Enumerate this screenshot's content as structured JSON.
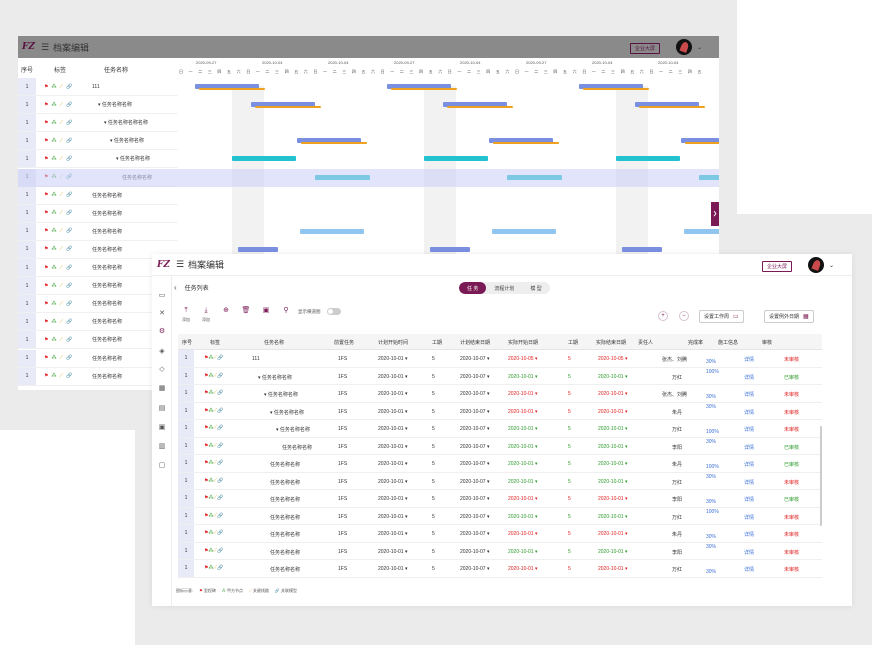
{
  "app": {
    "logo": "FZ",
    "title": "档案编辑",
    "enterprise_btn": "企业大屏"
  },
  "columns_bg": {
    "seq": "序号",
    "tags": "标签",
    "name": "任务名称"
  },
  "gantt": {
    "dates": [
      "2020-09-27",
      "2020-10-04",
      "2020-10-04",
      "2020-09-27",
      "2020-10-04",
      "2020-09-27",
      "2020-10-04",
      "2020-10-04"
    ],
    "weekdays": [
      "日",
      "一",
      "二",
      "三",
      "四",
      "五",
      "六"
    ]
  },
  "bg_rows": [
    {
      "seq": "1",
      "name": "111",
      "indent": 0
    },
    {
      "seq": "1",
      "name": "任务名称名称",
      "indent": 1
    },
    {
      "seq": "1",
      "name": "任务名称名称名称",
      "indent": 2
    },
    {
      "seq": "1",
      "name": "任务名称名称",
      "indent": 3
    },
    {
      "seq": "1",
      "name": "任务名称名称",
      "indent": 4
    },
    {
      "seq": "1",
      "name": "任务名称名称",
      "indent": 5
    },
    {
      "seq": "1",
      "name": "任务名称名称",
      "indent": 0
    },
    {
      "seq": "1",
      "name": "任务名称名称",
      "indent": 0
    },
    {
      "seq": "1",
      "name": "任务名称名称",
      "indent": 0
    },
    {
      "seq": "1",
      "name": "任务名称名称",
      "indent": 0
    },
    {
      "seq": "1",
      "name": "任务名称名称",
      "indent": 0
    },
    {
      "seq": "1",
      "name": "任务名称名称",
      "indent": 0
    },
    {
      "seq": "1",
      "name": "任务名称名称",
      "indent": 0
    },
    {
      "seq": "1",
      "name": "任务名称名称",
      "indent": 0
    },
    {
      "seq": "1",
      "name": "任务名称名称",
      "indent": 0
    },
    {
      "seq": "1",
      "name": "任务名称名称",
      "indent": 0
    },
    {
      "seq": "1",
      "name": "任务名称名称",
      "indent": 0
    }
  ],
  "front": {
    "breadcrumb": "任务列表",
    "tabs": [
      "任 务",
      "流程计划",
      "模 型"
    ],
    "toolbar": [
      "添加",
      "添加",
      "",
      "",
      "",
      "",
      ""
    ],
    "toggle_label": "显示横道图",
    "btn_workday": "设置工作周",
    "btn_exception": "设置例外日期",
    "headers": [
      "序号",
      "标签",
      "任务名称",
      "前置任务",
      "计划开始时间",
      "工期",
      "计划结束日期",
      "实际开始日期",
      "工期",
      "实际结束日期",
      "责任人",
      "完成率",
      "施工信息",
      "审核"
    ],
    "rows": [
      {
        "seq": "1",
        "name": "111",
        "indent": 0,
        "arrow": "",
        "pre": "1FS",
        "ps": "2020-10-01",
        "d1": "5",
        "pe": "2020-10-07",
        "as": "2020-10-05",
        "asc": "red",
        "d2": "5",
        "ae": "2020-10-05",
        "aec": "red",
        "owner": "张杰、刘腾",
        "rate": "30%",
        "info": "详情",
        "audit": "未审核",
        "auc": "red"
      },
      {
        "seq": "1",
        "name": "任务名称名称",
        "indent": 1,
        "arrow": "▾",
        "pre": "1FS",
        "ps": "2020-10-01",
        "d1": "5",
        "pe": "2020-10-07",
        "as": "2020-10-01",
        "asc": "grn",
        "d2": "5",
        "ae": "2020-10-01",
        "aec": "grn",
        "owner": "万红",
        "rate": "100%",
        "info": "详情",
        "audit": "已审核",
        "auc": "grn"
      },
      {
        "seq": "1",
        "name": "任务名称名称",
        "indent": 2,
        "arrow": "▾",
        "pre": "1FS",
        "ps": "2020-10-01",
        "d1": "5",
        "pe": "2020-10-07",
        "as": "2020-10-01",
        "asc": "red",
        "d2": "5",
        "ae": "2020-10-01",
        "aec": "red",
        "owner": "张杰、刘腾",
        "rate": "30%",
        "info": "详情",
        "audit": "未审核",
        "auc": "red"
      },
      {
        "seq": "1",
        "name": "任务名称名称",
        "indent": 3,
        "arrow": "▾",
        "pre": "1FS",
        "ps": "2020-10-01",
        "d1": "5",
        "pe": "2020-10-07",
        "as": "2020-10-01",
        "asc": "red",
        "d2": "5",
        "ae": "2020-10-01",
        "aec": "red",
        "owner": "朱丹",
        "rate": "30%",
        "info": "详情",
        "audit": "未审核",
        "auc": "red"
      },
      {
        "seq": "1",
        "name": "任务名称名称",
        "indent": 4,
        "arrow": "▾",
        "pre": "1FS",
        "ps": "2020-10-01",
        "d1": "5",
        "pe": "2020-10-07",
        "as": "2020-10-01",
        "asc": "grn",
        "d2": "5",
        "ae": "2020-10-01",
        "aec": "grn",
        "owner": "万红",
        "rate": "100%",
        "info": "详情",
        "audit": "未审核",
        "auc": "red"
      },
      {
        "seq": "1",
        "name": "任务名称名称",
        "indent": 5,
        "arrow": "",
        "pre": "1FS",
        "ps": "2020-10-01",
        "d1": "5",
        "pe": "2020-10-07",
        "as": "2020-10-01",
        "asc": "grn",
        "d2": "5",
        "ae": "2020-10-01",
        "aec": "grn",
        "owner": "李阳",
        "rate": "30%",
        "info": "详情",
        "audit": "已审核",
        "auc": "grn"
      },
      {
        "seq": "1",
        "name": "任务名称名称",
        "indent": 3,
        "arrow": "",
        "pre": "1FS",
        "ps": "2020-10-01",
        "d1": "5",
        "pe": "2020-10-07",
        "as": "2020-10-01",
        "asc": "grn",
        "d2": "5",
        "ae": "2020-10-01",
        "aec": "grn",
        "owner": "朱丹",
        "rate": "100%",
        "info": "详情",
        "audit": "已审核",
        "auc": "grn"
      },
      {
        "seq": "1",
        "name": "任务名称名称",
        "indent": 3,
        "arrow": "",
        "pre": "1FS",
        "ps": "2020-10-01",
        "d1": "5",
        "pe": "2020-10-07",
        "as": "2020-10-01",
        "asc": "grn",
        "d2": "5",
        "ae": "2020-10-01",
        "aec": "grn",
        "owner": "万红",
        "rate": "30%",
        "info": "详情",
        "audit": "未审核",
        "auc": "red"
      },
      {
        "seq": "1",
        "name": "任务名称名称",
        "indent": 3,
        "arrow": "",
        "pre": "1FS",
        "ps": "2020-10-01",
        "d1": "5",
        "pe": "2020-10-07",
        "as": "2020-10-01",
        "asc": "red",
        "d2": "5",
        "ae": "2020-10-01",
        "aec": "red",
        "owner": "李阳",
        "rate": "30%",
        "info": "详情",
        "audit": "已审核",
        "auc": "grn"
      },
      {
        "seq": "1",
        "name": "任务名称名称",
        "indent": 3,
        "arrow": "",
        "pre": "1FS",
        "ps": "2020-10-01",
        "d1": "5",
        "pe": "2020-10-07",
        "as": "2020-10-01",
        "asc": "grn",
        "d2": "5",
        "ae": "2020-10-01",
        "aec": "grn",
        "owner": "万红",
        "rate": "100%",
        "info": "详情",
        "audit": "未审核",
        "auc": "red"
      },
      {
        "seq": "1",
        "name": "任务名称名称",
        "indent": 3,
        "arrow": "",
        "pre": "1FS",
        "ps": "2020-10-01",
        "d1": "5",
        "pe": "2020-10-07",
        "as": "2020-10-01",
        "asc": "red",
        "d2": "5",
        "ae": "2020-10-01",
        "aec": "red",
        "owner": "朱丹",
        "rate": "30%",
        "info": "详情",
        "audit": "未审核",
        "auc": "red"
      },
      {
        "seq": "1",
        "name": "任务名称名称",
        "indent": 3,
        "arrow": "",
        "pre": "1FS",
        "ps": "2020-10-01",
        "d1": "5",
        "pe": "2020-10-07",
        "as": "2020-10-01",
        "asc": "grn",
        "d2": "5",
        "ae": "2020-10-01",
        "aec": "grn",
        "owner": "李阳",
        "rate": "30%",
        "info": "详情",
        "audit": "未审核",
        "auc": "red"
      },
      {
        "seq": "1",
        "name": "任务名称名称",
        "indent": 3,
        "arrow": "",
        "pre": "1FS",
        "ps": "2020-10-01",
        "d1": "5",
        "pe": "2020-10-07",
        "as": "2020-10-01",
        "asc": "red",
        "d2": "5",
        "ae": "2020-10-01",
        "aec": "red",
        "owner": "万红",
        "rate": "30%",
        "info": "详情",
        "audit": "未审核",
        "auc": "red"
      }
    ],
    "legend": {
      "label": "图标示意:",
      "items": [
        "里程碑",
        "甲方节点",
        "关键线路",
        "关联模型"
      ]
    }
  }
}
